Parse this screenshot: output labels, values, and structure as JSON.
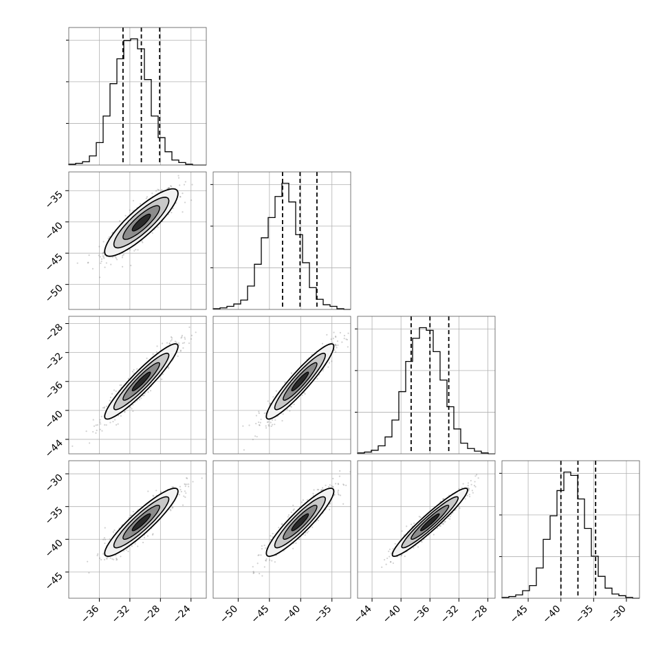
{
  "chart_data": {
    "type": "corner",
    "grid": true,
    "quantile_lines": "dashed",
    "variables": [
      {
        "range": [
          -40,
          -22
        ],
        "ticks": [
          -36,
          -32,
          -28,
          -24
        ],
        "quantiles": [
          -32.9,
          -30.5,
          -28.1
        ]
      },
      {
        "range": [
          -54,
          -32
        ],
        "ticks": [
          -50,
          -45,
          -40,
          -35
        ],
        "quantiles": [
          -42.9,
          -40.1,
          -37.4
        ]
      },
      {
        "range": [
          -46,
          -27
        ],
        "ticks": [
          -44,
          -40,
          -36,
          -32,
          -28
        ],
        "quantiles": [
          -38.6,
          -36.0,
          -33.4
        ]
      },
      {
        "range": [
          -49,
          -28
        ],
        "ticks": [
          -45,
          -40,
          -35,
          -30
        ],
        "quantiles": [
          -40.0,
          -37.4,
          -34.7
        ]
      }
    ],
    "histograms": [
      {
        "bins": 20,
        "counts": [
          1,
          2,
          4,
          11,
          27,
          59,
          98,
          128,
          150,
          152,
          140,
          103,
          59,
          33,
          16,
          6,
          3,
          1,
          0,
          0
        ]
      },
      {
        "bins": 20,
        "counts": [
          1,
          2,
          4,
          7,
          12,
          30,
          58,
          92,
          118,
          145,
          162,
          138,
          96,
          60,
          28,
          13,
          6,
          4,
          1,
          0
        ]
      },
      {
        "bins": 20,
        "counts": [
          1,
          2,
          4,
          9,
          19,
          38,
          70,
          104,
          130,
          142,
          139,
          115,
          83,
          53,
          28,
          12,
          6,
          3,
          1,
          0
        ]
      },
      {
        "bins": 20,
        "counts": [
          1,
          2,
          4,
          9,
          15,
          36,
          70,
          98,
          128,
          150,
          146,
          118,
          83,
          50,
          26,
          12,
          5,
          3,
          1,
          0
        ]
      }
    ],
    "pair_panels": [
      {
        "row": 1,
        "col": 0,
        "center": [
          -30.5,
          -40.1
        ],
        "sd": [
          2.4,
          2.7
        ],
        "corr": 0.86
      },
      {
        "row": 2,
        "col": 0,
        "center": [
          -30.5,
          -36.0
        ],
        "sd": [
          2.4,
          2.6
        ],
        "corr": 0.93
      },
      {
        "row": 2,
        "col": 1,
        "center": [
          -40.1,
          -36.0
        ],
        "sd": [
          2.7,
          2.6
        ],
        "corr": 0.93
      },
      {
        "row": 3,
        "col": 0,
        "center": [
          -30.5,
          -37.4
        ],
        "sd": [
          2.4,
          2.6
        ],
        "corr": 0.91
      },
      {
        "row": 3,
        "col": 1,
        "center": [
          -40.1,
          -37.4
        ],
        "sd": [
          2.7,
          2.6
        ],
        "corr": 0.91
      },
      {
        "row": 3,
        "col": 2,
        "center": [
          -36.0,
          -37.4
        ],
        "sd": [
          2.6,
          2.6
        ],
        "corr": 0.95
      }
    ],
    "contour_levels": [
      0.5,
      1.0,
      1.5,
      2.0
    ],
    "colors": {
      "line": "#000000",
      "grid": "#b0b0b0",
      "scatter": "#7a7a7a",
      "fill_outer": "#f2f2f2",
      "fill_mid": "#c8c8c8",
      "fill_inner": "#8c8c8c",
      "fill_core": "#2a2a2a"
    }
  }
}
